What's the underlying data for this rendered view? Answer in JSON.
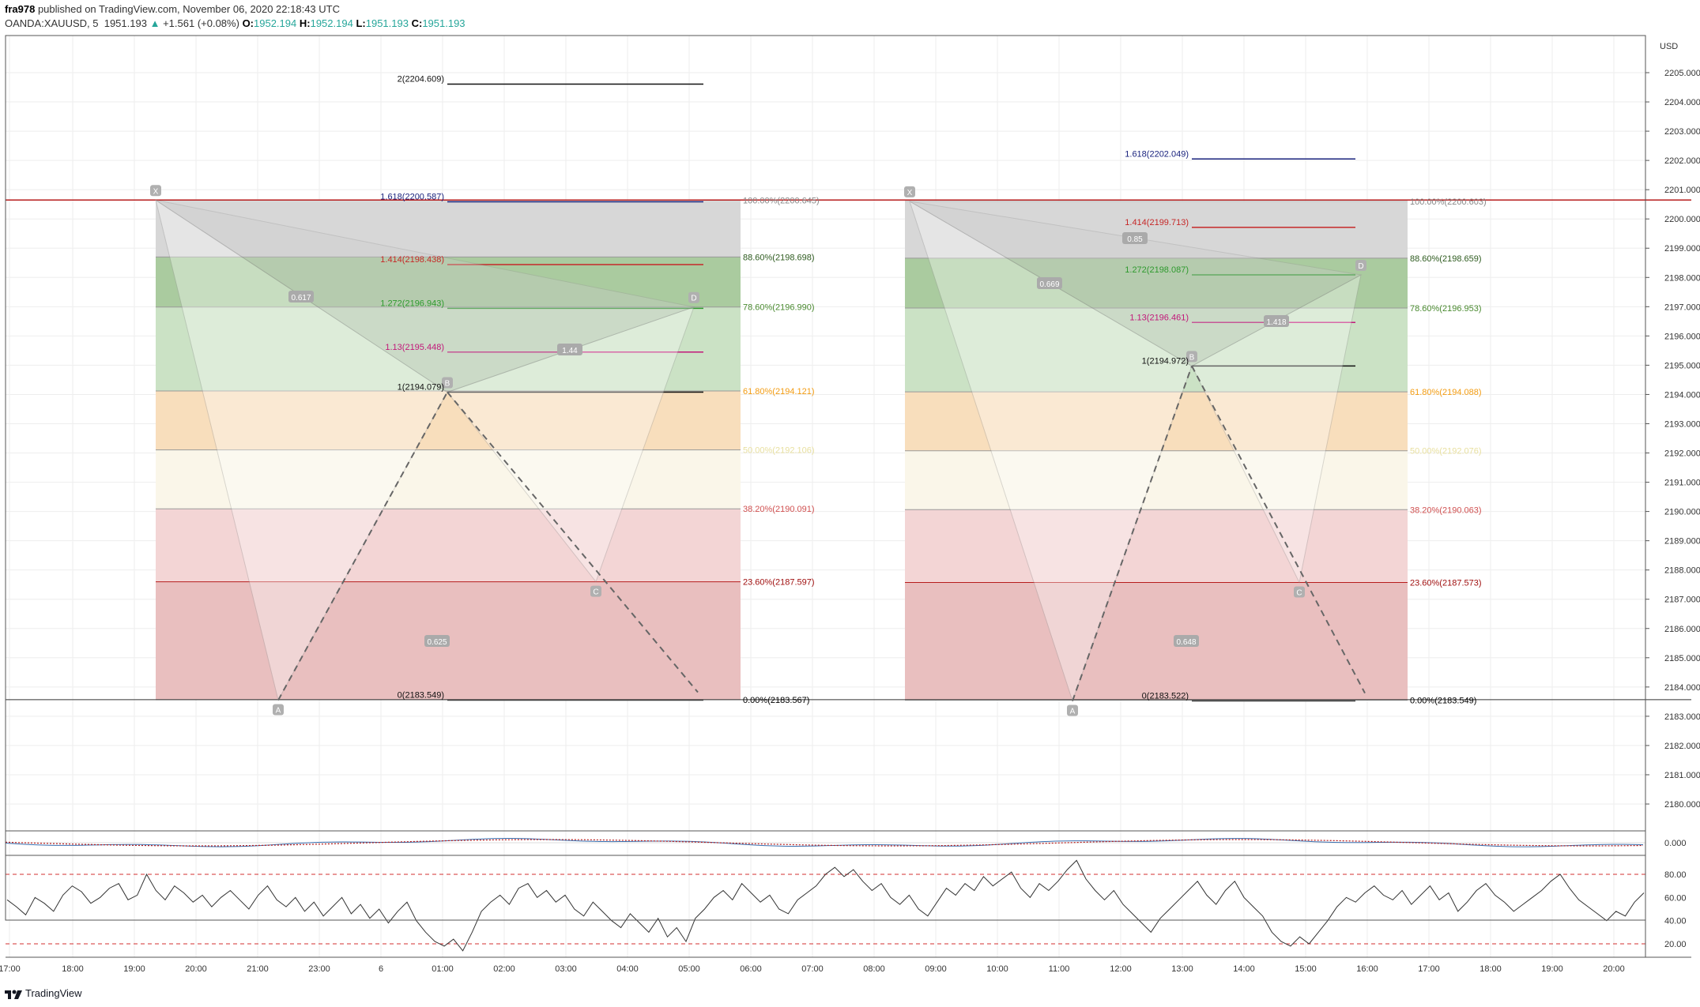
{
  "header": {
    "author": "fra978",
    "published_text": "published on TradingView.com, November 06, 2020 22:18:43 UTC",
    "symbol": "OANDA:XAUUSD, 5",
    "last": "1951.193",
    "change_arrow": "▲",
    "change": "+1.561 (+0.08%)",
    "o_label": "O:",
    "o": "1952.194",
    "h_label": "H:",
    "h": "1952.194",
    "l_label": "L:",
    "l": "1951.193",
    "c_label": "C:",
    "c": "1951.193"
  },
  "currency_label": "USD",
  "footer_brand": "TradingView",
  "colors": {
    "grid": "#eeeeee",
    "red_line": "#b71c1c",
    "fib_886": "#a5c89a",
    "fib_786": "#c8e0c2",
    "fib_618": "#f8dcb8",
    "fib_500": "#faf6e8",
    "fib_382": "#f2d3d3",
    "fib_236": "#e8bcbc",
    "fib_0": "#d9a9a9",
    "top_band": "#d5d5d5",
    "osc_line": "#333333",
    "macd_red": "#b71c1c",
    "macd_blue": "#3a6fb0"
  },
  "chart_data": {
    "type": "line",
    "title": "",
    "main_pane": {
      "ylim": [
        2179.0,
        2206.0
      ],
      "y_ticks": [
        "2180.000",
        "2181.000",
        "2182.000",
        "2183.000",
        "2184.000",
        "2185.000",
        "2186.000",
        "2187.000",
        "2188.000",
        "2189.000",
        "2190.000",
        "2191.000",
        "2192.000",
        "2193.000",
        "2194.000",
        "2195.000",
        "2196.000",
        "2197.000",
        "2198.000",
        "2199.000",
        "2200.000",
        "2201.000",
        "2202.000",
        "2203.000",
        "2204.000",
        "2205.000"
      ],
      "y_tick_values": [
        2180,
        2181,
        2182,
        2183,
        2184,
        2185,
        2186,
        2187,
        2188,
        2189,
        2190,
        2191,
        2192,
        2193,
        2194,
        2195,
        2196,
        2197,
        2198,
        2199,
        2200,
        2201,
        2202,
        2203,
        2204,
        2205
      ],
      "horizontal_lines": [
        2200.645,
        2183.567
      ],
      "patterns": [
        {
          "points": {
            "X": 2200.645,
            "A": 2183.549,
            "B": 2194.079,
            "C": 2187.597,
            "D": 2196.99
          },
          "point_labels": [
            "X",
            "A",
            "B",
            "C",
            "D"
          ],
          "ratios": [
            "0.617",
            "0.625",
            "1.44"
          ],
          "fib_retracement": [
            {
              "label": "100.00%(2200.645)",
              "value": 2200.645
            },
            {
              "label": "88.60%(2198.698)",
              "value": 2198.698
            },
            {
              "label": "78.60%(2196.990)",
              "value": 2196.99
            },
            {
              "label": "61.80%(2194.121)",
              "value": 2194.121
            },
            {
              "label": "50.00%(2192.106)",
              "value": 2192.106
            },
            {
              "label": "38.20%(2190.091)",
              "value": 2190.091
            },
            {
              "label": "23.60%(2187.597)",
              "value": 2187.597
            },
            {
              "label": "0.00%(2183.567)",
              "value": 2183.567
            }
          ],
          "fib_extension": [
            {
              "label": "2(2204.609)",
              "value": 2204.609
            },
            {
              "label": "1.618(2200.587)",
              "value": 2200.587
            },
            {
              "label": "1.414(2198.438)",
              "value": 2198.438
            },
            {
              "label": "1.272(2196.943)",
              "value": 2196.943
            },
            {
              "label": "1.13(2195.448)",
              "value": 2195.448
            },
            {
              "label": "1(2194.079)",
              "value": 2194.079
            },
            {
              "label": "0(2183.549)",
              "value": 2183.549
            }
          ]
        },
        {
          "points": {
            "X": 2200.603,
            "A": 2183.522,
            "B": 2194.972,
            "C": 2187.573,
            "D": 2198.087
          },
          "point_labels": [
            "X",
            "A",
            "B",
            "C",
            "D"
          ],
          "ratios": [
            "0.669",
            "0.85",
            "0.648",
            "1.418"
          ],
          "fib_retracement": [
            {
              "label": "100.00%(2200.603)",
              "value": 2200.603
            },
            {
              "label": "88.60%(2198.659)",
              "value": 2198.659
            },
            {
              "label": "78.60%(2196.953)",
              "value": 2196.953
            },
            {
              "label": "61.80%(2194.088)",
              "value": 2194.088
            },
            {
              "label": "50.00%(2192.076)",
              "value": 2192.076
            },
            {
              "label": "38.20%(2190.063)",
              "value": 2190.063
            },
            {
              "label": "23.60%(2187.573)",
              "value": 2187.573
            },
            {
              "label": "0.00%(2183.549)",
              "value": 2183.549
            }
          ],
          "fib_extension": [
            {
              "label": "1.618(2202.049)",
              "value": 2202.049
            },
            {
              "label": "1.414(2199.713)",
              "value": 2199.713
            },
            {
              "label": "1.272(2198.087)",
              "value": 2198.087
            },
            {
              "label": "1.13(2196.461)",
              "value": 2196.461
            },
            {
              "label": "1(2194.972)",
              "value": 2194.972
            },
            {
              "label": "0(2183.522)",
              "value": 2183.522
            }
          ]
        }
      ]
    },
    "macd_pane": {
      "y_ticks": [
        "0.000"
      ]
    },
    "oscillator_pane": {
      "ylim": [
        10,
        95
      ],
      "y_ticks": [
        "20.00",
        "40.00",
        "60.00",
        "80.00"
      ],
      "y_tick_values": [
        20,
        40,
        60,
        80
      ],
      "bands": [
        20,
        80
      ],
      "values": [
        58,
        52,
        45,
        60,
        55,
        48,
        62,
        70,
        65,
        55,
        60,
        68,
        72,
        58,
        62,
        80,
        66,
        58,
        70,
        64,
        56,
        62,
        52,
        60,
        66,
        58,
        50,
        62,
        70,
        58,
        52,
        60,
        48,
        56,
        44,
        52,
        60,
        46,
        54,
        42,
        50,
        38,
        48,
        56,
        40,
        30,
        22,
        18,
        24,
        14,
        30,
        48,
        56,
        62,
        54,
        68,
        72,
        60,
        66,
        56,
        62,
        50,
        44,
        56,
        48,
        40,
        34,
        46,
        38,
        30,
        42,
        26,
        34,
        22,
        42,
        50,
        60,
        66,
        58,
        72,
        64,
        56,
        62,
        50,
        46,
        58,
        64,
        70,
        80,
        86,
        78,
        84,
        74,
        66,
        72,
        60,
        54,
        62,
        50,
        44,
        56,
        68,
        62,
        72,
        66,
        78,
        70,
        76,
        82,
        68,
        60,
        72,
        66,
        74,
        84,
        92,
        76,
        66,
        58,
        66,
        54,
        46,
        38,
        30,
        42,
        50,
        58,
        66,
        74,
        62,
        54,
        66,
        74,
        60,
        52,
        44,
        30,
        22,
        18,
        26,
        20,
        30,
        40,
        52,
        60,
        56,
        64,
        70,
        62,
        58,
        66,
        54,
        62,
        70,
        58,
        64,
        48,
        56,
        66,
        72,
        62,
        56,
        48,
        54,
        60,
        66,
        74,
        80,
        68,
        58,
        52,
        46,
        40,
        48,
        44,
        56,
        64
      ]
    },
    "x_ticks": [
      "17:00",
      "18:00",
      "19:00",
      "20:00",
      "21:00",
      "23:00",
      "6",
      "01:00",
      "02:00",
      "03:00",
      "04:00",
      "05:00",
      "06:00",
      "07:00",
      "08:00",
      "09:00",
      "10:00",
      "11:00",
      "12:00",
      "13:00",
      "14:00",
      "15:00",
      "16:00",
      "17:00",
      "18:00",
      "19:00",
      "20:00"
    ],
    "grid": true,
    "legend": "none"
  }
}
